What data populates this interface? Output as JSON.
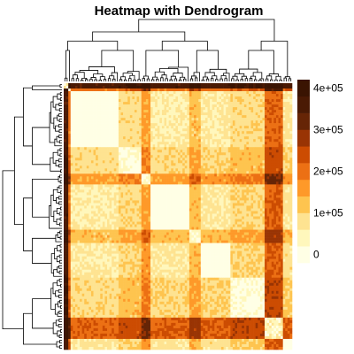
{
  "chart_data": {
    "type": "heatmap",
    "title": "Heatmap with Dendrogram",
    "xlabel": "",
    "ylabel": "",
    "n_rows": 100,
    "n_cols": 100,
    "row_dendrogram": true,
    "col_dendrogram": true,
    "legend_position": "right",
    "color_scale": {
      "min": 0,
      "max": 400000,
      "ticks": [
        0,
        100000,
        200000,
        300000,
        400000
      ],
      "tick_labels": [
        "0",
        "1e+05",
        "2e+05",
        "3e+05",
        "4e+05"
      ],
      "colors": [
        "#FFFFE5",
        "#FFF7BC",
        "#FEE391",
        "#FEC44F",
        "#FE9929",
        "#EC7014",
        "#CC4C02",
        "#993404",
        "#662506",
        "#4A1A04",
        "#3A1402"
      ]
    }
  }
}
